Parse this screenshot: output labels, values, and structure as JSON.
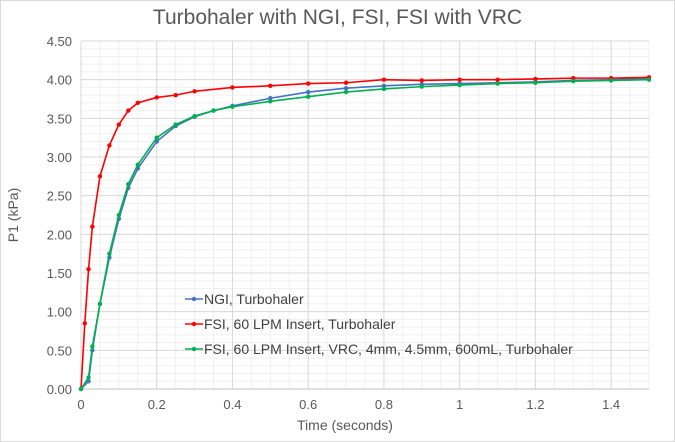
{
  "chart_data": {
    "type": "line",
    "title": "Turbohaler with NGI, FSI, FSI with VRC",
    "xlabel": "Time (seconds)",
    "ylabel": "P1 (kPa)",
    "xlim": [
      0,
      1.5
    ],
    "ylim": [
      0,
      4.5
    ],
    "xticks": [
      "0",
      "0.2",
      "0.4",
      "0.6",
      "0.8",
      "1",
      "1.2",
      "1.4"
    ],
    "yticks": [
      "0.00",
      "0.50",
      "1.00",
      "1.50",
      "2.00",
      "2.50",
      "3.00",
      "3.50",
      "4.00",
      "4.50"
    ],
    "grid": true,
    "legend": "bottom-center",
    "series": [
      {
        "name": "NGI, Turbohaler",
        "color": "#4472c4",
        "x": [
          0,
          0.02,
          0.03,
          0.05,
          0.075,
          0.1,
          0.125,
          0.15,
          0.2,
          0.25,
          0.3,
          0.35,
          0.4,
          0.5,
          0.6,
          0.7,
          0.8,
          0.9,
          1.0,
          1.1,
          1.2,
          1.3,
          1.4,
          1.5
        ],
        "y": [
          0,
          0.1,
          0.5,
          1.1,
          1.7,
          2.2,
          2.6,
          2.85,
          3.2,
          3.4,
          3.52,
          3.6,
          3.66,
          3.76,
          3.84,
          3.89,
          3.92,
          3.94,
          3.95,
          3.96,
          3.97,
          3.99,
          4.0,
          4.02
        ]
      },
      {
        "name": "FSI, 60 LPM Insert, Turbohaler",
        "color": "#ff0000",
        "x": [
          0,
          0.01,
          0.02,
          0.03,
          0.05,
          0.075,
          0.1,
          0.125,
          0.15,
          0.2,
          0.25,
          0.3,
          0.4,
          0.5,
          0.6,
          0.7,
          0.8,
          0.9,
          1.0,
          1.1,
          1.2,
          1.3,
          1.4,
          1.5
        ],
        "y": [
          0,
          0.85,
          1.55,
          2.1,
          2.75,
          3.15,
          3.42,
          3.6,
          3.7,
          3.77,
          3.8,
          3.85,
          3.9,
          3.92,
          3.95,
          3.96,
          4.0,
          3.99,
          4.0,
          4.0,
          4.01,
          4.02,
          4.02,
          4.03
        ]
      },
      {
        "name": "FSI, 60 LPM Insert, VRC, 4mm, 4.5mm, 600mL, Turbohaler",
        "color": "#00b050",
        "x": [
          0,
          0.02,
          0.03,
          0.05,
          0.075,
          0.1,
          0.125,
          0.15,
          0.2,
          0.25,
          0.3,
          0.35,
          0.4,
          0.5,
          0.6,
          0.7,
          0.8,
          0.9,
          1.0,
          1.1,
          1.2,
          1.3,
          1.4,
          1.5
        ],
        "y": [
          0,
          0.15,
          0.55,
          1.1,
          1.75,
          2.25,
          2.65,
          2.9,
          3.25,
          3.42,
          3.53,
          3.6,
          3.65,
          3.72,
          3.78,
          3.84,
          3.88,
          3.91,
          3.93,
          3.95,
          3.96,
          3.98,
          3.99,
          4.0
        ]
      }
    ]
  }
}
